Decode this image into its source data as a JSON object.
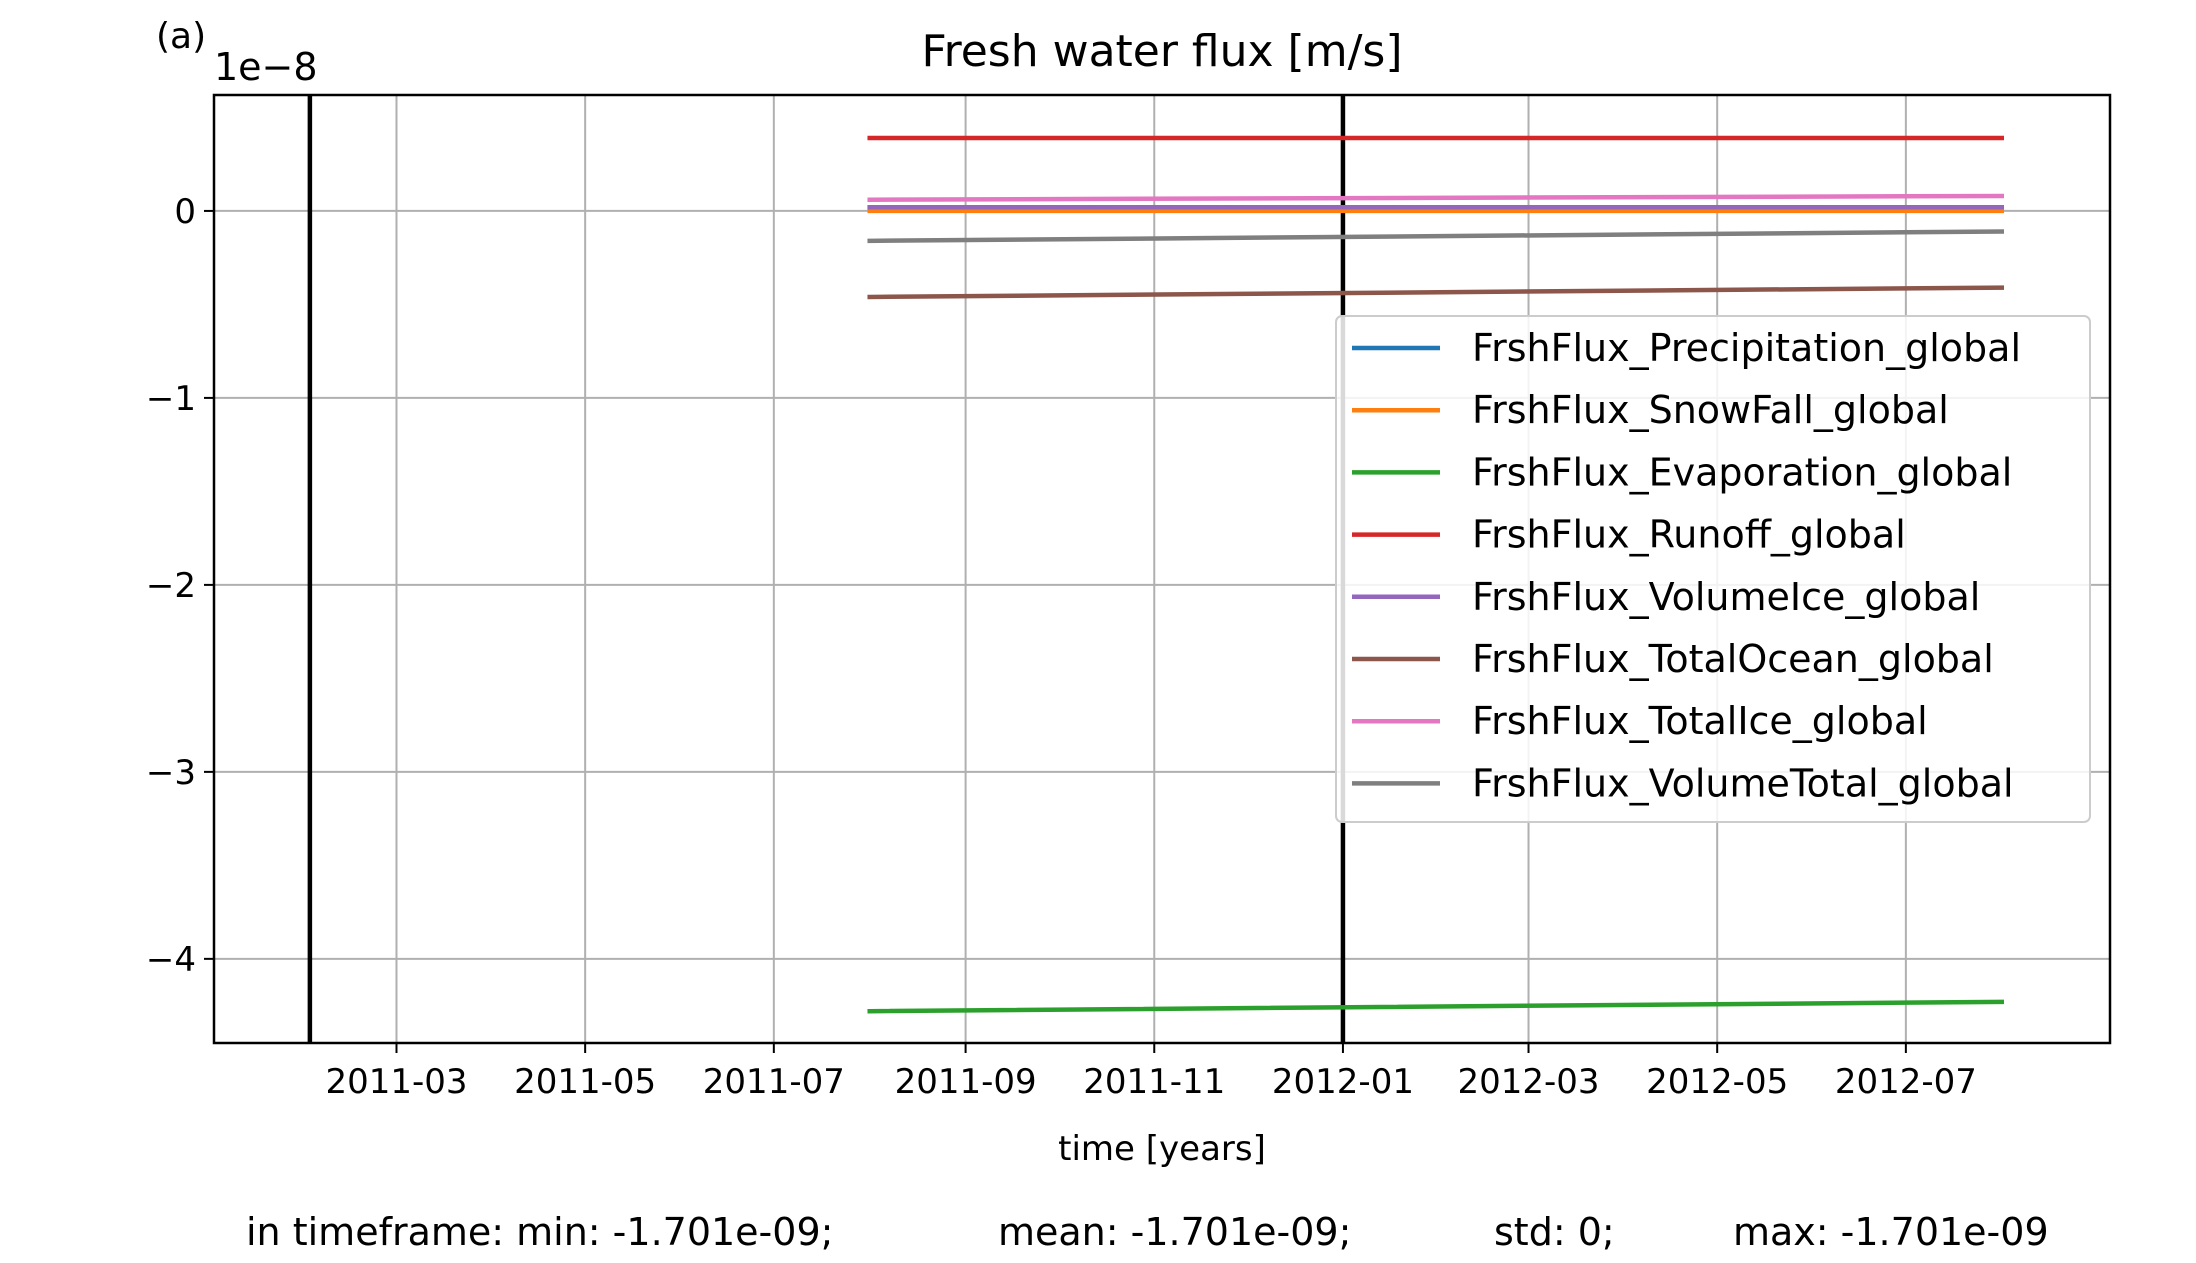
{
  "chart_data": {
    "type": "line",
    "panel_label": "(a)",
    "title": "Fresh water flux [m/s]",
    "xlabel": "time [years]",
    "ylabel": "",
    "offset_label": "1e−8",
    "x_range": [
      "2011-01-01",
      "2012-09-05"
    ],
    "x_ticks": [
      "2011-03-01",
      "2011-05-01",
      "2011-07-01",
      "2011-09-01",
      "2011-11-01",
      "2012-01-01",
      "2012-03-01",
      "2012-05-01",
      "2012-07-01"
    ],
    "x_tick_labels": [
      "2011-03",
      "2011-05",
      "2011-07",
      "2011-09",
      "2011-11",
      "2012-01",
      "2012-03",
      "2012-05",
      "2012-07"
    ],
    "ylim": [
      -4.45,
      0.62
    ],
    "y_ticks": [
      0,
      -1,
      -2,
      -3,
      -4
    ],
    "y_tick_labels": [
      "0",
      "−1",
      "−2",
      "−3",
      "−4"
    ],
    "grid": true,
    "legend_position": "right",
    "vertical_lines": [
      "2011-02-01",
      "2012-01-01"
    ],
    "series": [
      {
        "name": "FrshFlux_Precipitation_global",
        "color": "#1f77b4",
        "x": [
          "2011-08-01",
          "2012-08-01"
        ],
        "y": [
          0.02,
          0.02
        ]
      },
      {
        "name": "FrshFlux_SnowFall_global",
        "color": "#ff7f0e",
        "x": [
          "2011-08-01",
          "2012-08-01"
        ],
        "y": [
          0.0,
          0.0
        ]
      },
      {
        "name": "FrshFlux_Evaporation_global",
        "color": "#2ca02c",
        "x": [
          "2011-08-01",
          "2012-08-01"
        ],
        "y": [
          -4.28,
          -4.23
        ]
      },
      {
        "name": "FrshFlux_Runoff_global",
        "color": "#d62728",
        "x": [
          "2011-08-01",
          "2012-08-01"
        ],
        "y": [
          0.39,
          0.39
        ]
      },
      {
        "name": "FrshFlux_VolumeIce_global",
        "color": "#9467bd",
        "x": [
          "2011-08-01",
          "2012-08-01"
        ],
        "y": [
          0.02,
          0.02
        ]
      },
      {
        "name": "FrshFlux_TotalOcean_global",
        "color": "#8c564b",
        "x": [
          "2011-08-01",
          "2012-08-01"
        ],
        "y": [
          -0.46,
          -0.41
        ]
      },
      {
        "name": "FrshFlux_TotalIce_global",
        "color": "#e377c2",
        "x": [
          "2011-08-01",
          "2012-08-01"
        ],
        "y": [
          0.06,
          0.08
        ]
      },
      {
        "name": "FrshFlux_VolumeTotal_global",
        "color": "#7f7f7f",
        "x": [
          "2011-08-01",
          "2012-08-01"
        ],
        "y": [
          -0.16,
          -0.11
        ]
      }
    ]
  },
  "stats": {
    "min": "in timeframe: min: -1.701e-09;",
    "mean": "mean: -1.701e-09;",
    "std": "std: 0;",
    "max": "max: -1.701e-09"
  }
}
